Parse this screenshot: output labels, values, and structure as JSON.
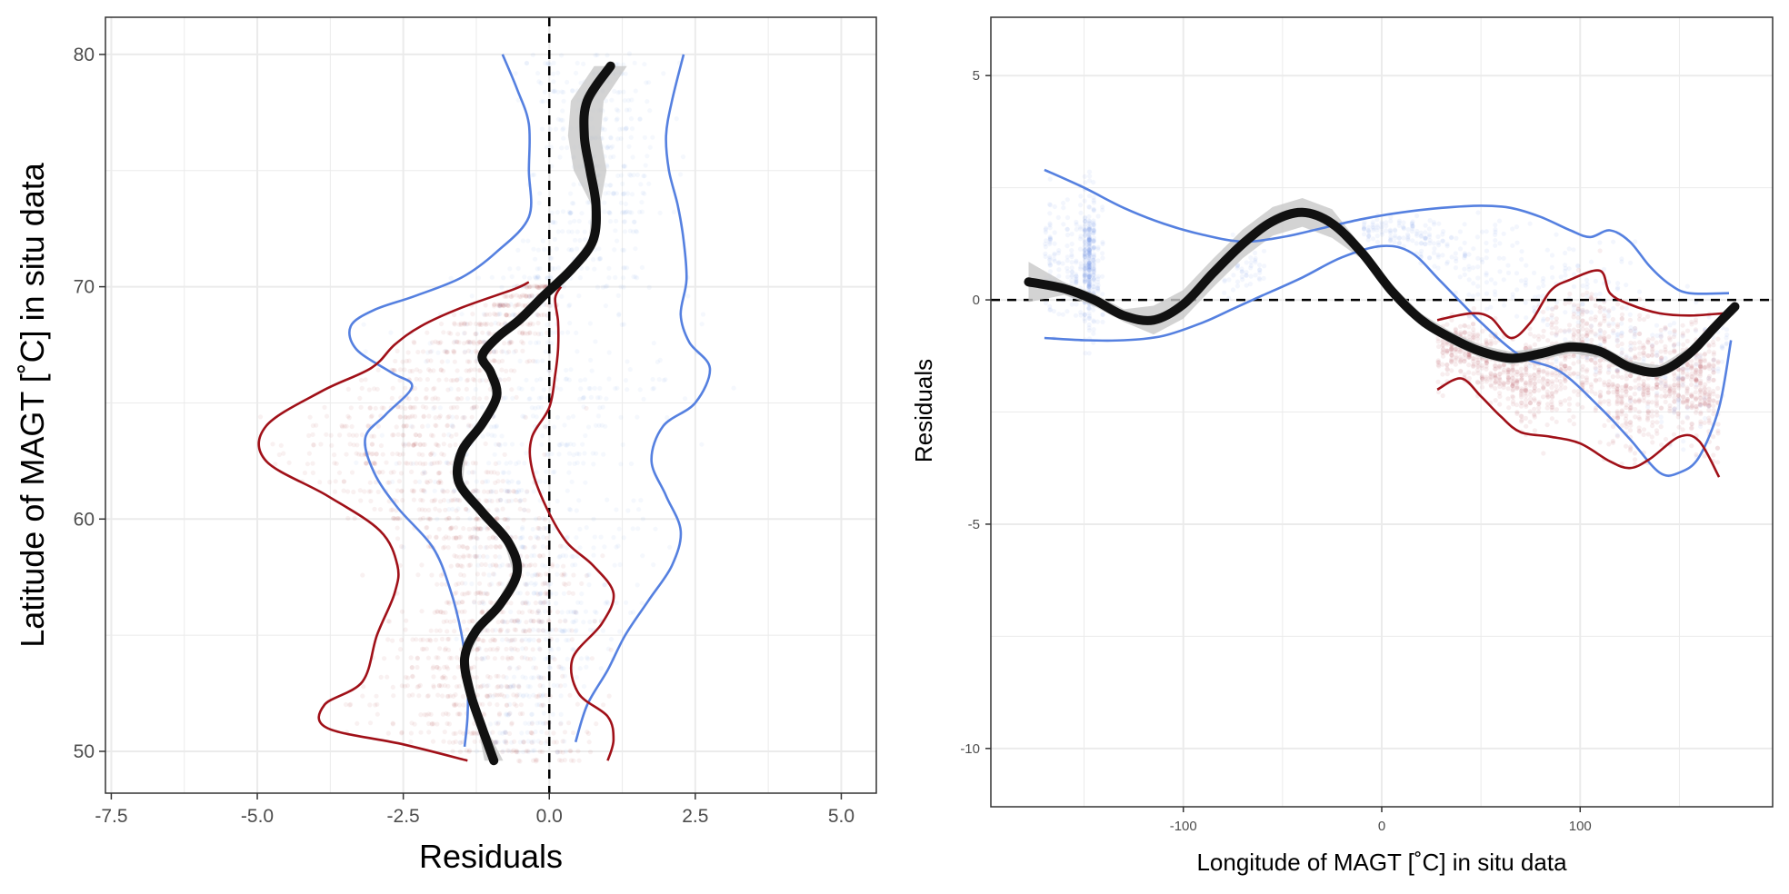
{
  "chart_data": [
    {
      "type": "scatter",
      "xlabel": "Residuals",
      "ylabel": "Latitude of MAGT [˚C] in situ data",
      "xlim": [
        -7.6,
        5.6
      ],
      "ylim": [
        48.2,
        81.6
      ],
      "xticks": [
        -7.5,
        -5.0,
        -2.5,
        0.0,
        2.5,
        5.0
      ],
      "xtick_labels": [
        "-7.5",
        "-5.0",
        "-2.5",
        "0.0",
        "2.5",
        "5.0"
      ],
      "yticks": [
        50,
        60,
        70,
        80
      ],
      "ytick_labels": [
        "50",
        "60",
        "70",
        "80"
      ],
      "grid": true,
      "reference_line": {
        "orientation": "vertical",
        "value": 0,
        "style": "dashed"
      },
      "colors": {
        "blue": "#5580e0",
        "red": "#a01018",
        "smooth": "#111111",
        "ci": "#c8c8c8"
      },
      "series": [
        {
          "role": "smooth-mean",
          "color": "#111111",
          "points": [
            [
              -0.95,
              49.6
            ],
            [
              -1.15,
              51.0
            ],
            [
              -1.35,
              52.5
            ],
            [
              -1.45,
              54.0
            ],
            [
              -1.25,
              55.2
            ],
            [
              -0.85,
              56.3
            ],
            [
              -0.55,
              57.7
            ],
            [
              -0.7,
              59.0
            ],
            [
              -1.15,
              60.3
            ],
            [
              -1.55,
              61.6
            ],
            [
              -1.5,
              62.9
            ],
            [
              -1.15,
              64.1
            ],
            [
              -0.9,
              65.3
            ],
            [
              -1.0,
              66.3
            ],
            [
              -1.15,
              67.0
            ],
            [
              -0.9,
              67.8
            ],
            [
              -0.5,
              68.6
            ],
            [
              -0.1,
              69.6
            ],
            [
              0.4,
              70.8
            ],
            [
              0.75,
              72.0
            ],
            [
              0.8,
              73.5
            ],
            [
              0.7,
              75.0
            ],
            [
              0.6,
              76.5
            ],
            [
              0.65,
              78.0
            ],
            [
              1.05,
              79.5
            ]
          ]
        },
        {
          "role": "quantile",
          "color": "#5580e0",
          "points": [
            [
              -1.45,
              50.2
            ],
            [
              -1.4,
              51.5
            ],
            [
              -1.4,
              53.0
            ],
            [
              -1.5,
              55.0
            ],
            [
              -1.7,
              57.0
            ],
            [
              -2.0,
              58.8
            ],
            [
              -2.6,
              60.5
            ],
            [
              -3.0,
              62.0
            ],
            [
              -3.15,
              63.5
            ],
            [
              -2.8,
              64.5
            ],
            [
              -2.35,
              65.7
            ],
            [
              -2.7,
              66.3
            ],
            [
              -3.3,
              67.3
            ],
            [
              -3.4,
              68.3
            ],
            [
              -3.0,
              69.0
            ],
            [
              -2.3,
              69.6
            ],
            [
              -1.5,
              70.4
            ],
            [
              -0.9,
              71.5
            ],
            [
              -0.35,
              73.0
            ],
            [
              -0.35,
              75.0
            ],
            [
              -0.35,
              77.0
            ],
            [
              -0.55,
              78.5
            ],
            [
              -0.8,
              80.0
            ]
          ]
        },
        {
          "role": "quantile",
          "color": "#5580e0",
          "points": [
            [
              0.45,
              50.4
            ],
            [
              0.65,
              52.0
            ],
            [
              1.0,
              53.5
            ],
            [
              1.3,
              55.0
            ],
            [
              1.7,
              56.5
            ],
            [
              2.1,
              58.0
            ],
            [
              2.25,
              59.5
            ],
            [
              2.0,
              61.0
            ],
            [
              1.75,
              62.5
            ],
            [
              1.95,
              64.0
            ],
            [
              2.5,
              65.0
            ],
            [
              2.75,
              66.5
            ],
            [
              2.4,
              67.6
            ],
            [
              2.25,
              68.8
            ],
            [
              2.35,
              70.3
            ],
            [
              2.3,
              72.0
            ],
            [
              2.2,
              73.5
            ],
            [
              2.05,
              75.0
            ],
            [
              2.0,
              76.5
            ],
            [
              2.1,
              78.0
            ],
            [
              2.3,
              80.0
            ]
          ]
        },
        {
          "role": "quantile",
          "color": "#a01018",
          "points": [
            [
              -1.4,
              49.6
            ],
            [
              -2.5,
              50.3
            ],
            [
              -3.8,
              51.0
            ],
            [
              -3.85,
              52.0
            ],
            [
              -3.2,
              53.0
            ],
            [
              -2.95,
              55.0
            ],
            [
              -2.65,
              56.8
            ],
            [
              -2.6,
              58.0
            ],
            [
              -2.9,
              59.5
            ],
            [
              -3.8,
              61.0
            ],
            [
              -4.85,
              62.5
            ],
            [
              -4.85,
              64.0
            ],
            [
              -3.9,
              65.5
            ],
            [
              -3.05,
              66.5
            ],
            [
              -2.65,
              67.5
            ],
            [
              -2.2,
              68.3
            ],
            [
              -1.5,
              69.1
            ],
            [
              -0.6,
              69.9
            ],
            [
              -0.35,
              70.2
            ]
          ]
        },
        {
          "role": "quantile",
          "color": "#a01018",
          "points": [
            [
              1.0,
              49.6
            ],
            [
              1.1,
              50.5
            ],
            [
              1.0,
              51.5
            ],
            [
              0.5,
              52.5
            ],
            [
              0.4,
              54.0
            ],
            [
              0.9,
              55.5
            ],
            [
              1.1,
              56.8
            ],
            [
              0.75,
              58.0
            ],
            [
              0.3,
              59.0
            ],
            [
              -0.05,
              60.5
            ],
            [
              -0.3,
              62.2
            ],
            [
              -0.3,
              63.5
            ],
            [
              0.0,
              64.8
            ],
            [
              0.1,
              66.2
            ],
            [
              0.15,
              67.3
            ],
            [
              0.15,
              68.5
            ],
            [
              0.1,
              69.5
            ],
            [
              0.2,
              70.0
            ]
          ]
        }
      ]
    },
    {
      "type": "scatter",
      "xlabel": "Longitude of MAGT [˚C] in situ data",
      "ylabel": "Residuals",
      "xlim": [
        -197,
        197
      ],
      "ylim": [
        -11.3,
        6.3
      ],
      "xticks": [
        -100,
        0,
        100
      ],
      "xtick_labels": [
        "-100",
        "0",
        "100"
      ],
      "yticks": [
        5,
        0,
        -5,
        -10
      ],
      "ytick_labels": [
        "5",
        "0",
        "-5",
        "-10"
      ],
      "grid": true,
      "reference_line": {
        "orientation": "horizontal",
        "value": 0,
        "style": "dashed"
      },
      "colors": {
        "blue": "#5580e0",
        "red": "#a01018",
        "smooth": "#111111",
        "ci": "#c8c8c8"
      },
      "series": [
        {
          "role": "smooth-mean",
          "color": "#111111",
          "points": [
            [
              -178,
              0.4
            ],
            [
              -160,
              0.25
            ],
            [
              -145,
              0.0
            ],
            [
              -130,
              -0.35
            ],
            [
              -115,
              -0.45
            ],
            [
              -100,
              -0.1
            ],
            [
              -85,
              0.6
            ],
            [
              -70,
              1.25
            ],
            [
              -55,
              1.75
            ],
            [
              -40,
              1.95
            ],
            [
              -25,
              1.7
            ],
            [
              -10,
              1.05
            ],
            [
              5,
              0.2
            ],
            [
              20,
              -0.45
            ],
            [
              35,
              -0.85
            ],
            [
              50,
              -1.15
            ],
            [
              65,
              -1.3
            ],
            [
              80,
              -1.2
            ],
            [
              95,
              -1.05
            ],
            [
              110,
              -1.15
            ],
            [
              125,
              -1.5
            ],
            [
              140,
              -1.6
            ],
            [
              155,
              -1.2
            ],
            [
              168,
              -0.6
            ],
            [
              178,
              -0.15
            ]
          ]
        },
        {
          "role": "quantile",
          "color": "#5580e0",
          "points": [
            [
              -170,
              2.9
            ],
            [
              -150,
              2.5
            ],
            [
              -130,
              2.05
            ],
            [
              -110,
              1.7
            ],
            [
              -90,
              1.45
            ],
            [
              -70,
              1.3
            ],
            [
              -50,
              1.4
            ],
            [
              -30,
              1.6
            ],
            [
              -10,
              1.8
            ],
            [
              10,
              1.95
            ],
            [
              30,
              2.05
            ],
            [
              50,
              2.1
            ],
            [
              65,
              2.05
            ],
            [
              80,
              1.85
            ],
            [
              95,
              1.55
            ],
            [
              105,
              1.4
            ],
            [
              115,
              1.55
            ],
            [
              125,
              1.3
            ],
            [
              135,
              0.75
            ],
            [
              145,
              0.35
            ],
            [
              155,
              0.15
            ],
            [
              175,
              0.15
            ]
          ]
        },
        {
          "role": "quantile",
          "color": "#5580e0",
          "points": [
            [
              -170,
              -0.85
            ],
            [
              -150,
              -0.9
            ],
            [
              -130,
              -0.9
            ],
            [
              -110,
              -0.8
            ],
            [
              -90,
              -0.5
            ],
            [
              -75,
              -0.2
            ],
            [
              -60,
              0.1
            ],
            [
              -40,
              0.5
            ],
            [
              -20,
              0.95
            ],
            [
              0,
              1.2
            ],
            [
              15,
              1.05
            ],
            [
              30,
              0.4
            ],
            [
              50,
              -0.5
            ],
            [
              70,
              -1.25
            ],
            [
              90,
              -1.6
            ],
            [
              110,
              -2.4
            ],
            [
              125,
              -3.1
            ],
            [
              140,
              -3.85
            ],
            [
              150,
              -3.85
            ],
            [
              160,
              -3.5
            ],
            [
              170,
              -2.4
            ],
            [
              176,
              -0.9
            ]
          ]
        },
        {
          "role": "quantile",
          "color": "#a01018",
          "points": [
            [
              28,
              -0.45
            ],
            [
              45,
              -0.3
            ],
            [
              55,
              -0.4
            ],
            [
              65,
              -0.85
            ],
            [
              75,
              -0.5
            ],
            [
              85,
              0.2
            ],
            [
              95,
              0.45
            ],
            [
              110,
              0.65
            ],
            [
              115,
              0.15
            ],
            [
              125,
              -0.1
            ],
            [
              140,
              -0.3
            ],
            [
              155,
              -0.35
            ],
            [
              172,
              -0.3
            ]
          ]
        },
        {
          "role": "quantile",
          "color": "#a01018",
          "points": [
            [
              28,
              -2.0
            ],
            [
              40,
              -1.75
            ],
            [
              50,
              -2.15
            ],
            [
              60,
              -2.6
            ],
            [
              70,
              -2.95
            ],
            [
              85,
              -3.05
            ],
            [
              100,
              -3.2
            ],
            [
              115,
              -3.6
            ],
            [
              125,
              -3.75
            ],
            [
              135,
              -3.55
            ],
            [
              150,
              -3.05
            ],
            [
              160,
              -3.15
            ],
            [
              170,
              -3.95
            ]
          ]
        }
      ]
    }
  ]
}
